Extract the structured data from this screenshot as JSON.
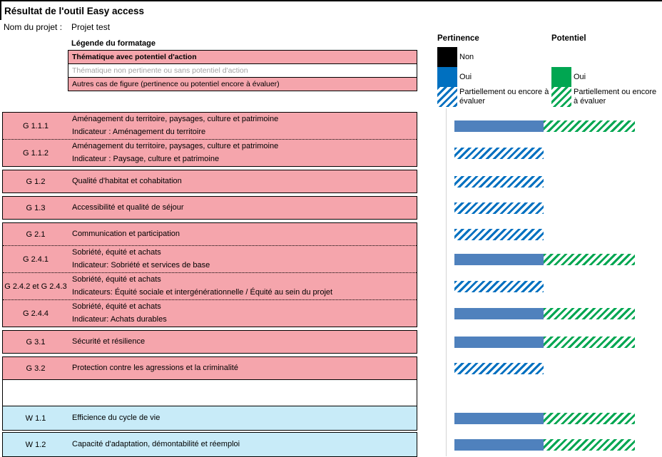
{
  "page": {
    "title": "Résultat de l'outil Easy access",
    "project_label": "Nom du projet :",
    "project_name": "Projet test"
  },
  "colors": {
    "pink_row": "#F5A5AC",
    "light_blue_row": "#C8EBF8",
    "solid_bar_blue": "#4F81BD",
    "legend_blue": "#0070C0",
    "legend_green": "#00A651",
    "legend_black": "#000000",
    "gray_text": "#A3A3A3"
  },
  "format_legend": {
    "header": "Légende du formatage",
    "rows": [
      {
        "text": "Thématique avec potentiel d'action",
        "style": "pink-bold"
      },
      {
        "text": "Thématique non pertinente ou sans potentiel d'action",
        "style": "white-gray"
      },
      {
        "text": "Autres cas de figure (pertinence ou potentiel encore à évaluer)",
        "style": "pink"
      }
    ]
  },
  "bar_legend": {
    "pertinence": {
      "title": "Pertinence",
      "items": [
        {
          "swatch": "black",
          "label": "Non"
        },
        {
          "swatch": "blue",
          "label": "Oui"
        },
        {
          "swatch": "blue-hatch",
          "label": "Partiellement ou encore à évaluer"
        }
      ]
    },
    "potentiel": {
      "title": "Potentiel",
      "items": [
        {
          "swatch": "green",
          "label": "Oui"
        },
        {
          "swatch": "green-hatch",
          "label": "Partiellement ou encore à évaluer"
        }
      ]
    }
  },
  "sections": [
    {
      "type": "box",
      "theme": "pink",
      "rows": [
        {
          "id": "G 1.1.1",
          "title": "Aménagement du territoire, paysages, culture et patrimoine",
          "indicator": "Indicateur : Aménagement du territoire",
          "pertinence": "oui",
          "potentiel": "partiel"
        },
        {
          "id": "G 1.1.2",
          "title": "Aménagement du territoire, paysages, culture et patrimoine",
          "indicator": "Indicateur : Paysage, culture et patrimoine",
          "pertinence": "partiel",
          "potentiel": null
        }
      ]
    },
    {
      "type": "box",
      "theme": "pink",
      "rows": [
        {
          "id": "G 1.2",
          "title": "Qualité d'habitat et cohabitation",
          "pertinence": "partiel",
          "potentiel": null
        }
      ]
    },
    {
      "type": "box",
      "theme": "pink",
      "rows": [
        {
          "id": "G 1.3",
          "title": "Accessibilité et qualité de séjour",
          "pertinence": "partiel",
          "potentiel": null
        }
      ]
    },
    {
      "type": "box",
      "theme": "pink",
      "rows": [
        {
          "id": "G 2.1",
          "title": "Communication et participation",
          "pertinence": "partiel",
          "potentiel": null
        },
        {
          "id": "G 2.4.1",
          "title": "Sobriété, équité et achats",
          "indicator": "Indicateur: Sobriété et services de base",
          "pertinence": "oui",
          "potentiel": "partiel"
        },
        {
          "id": "G 2.4.2 et G 2.4.3",
          "title": "Sobriété, équité et achats",
          "indicator": "Indicateurs: Équité sociale et intergénérationnelle / Équité au sein du projet",
          "pertinence": "partiel",
          "potentiel": null
        },
        {
          "id": "G 2.4.4",
          "title": "Sobriété, équité et achats",
          "indicator": "Indicateur: Achats durables",
          "pertinence": "oui",
          "potentiel": "partiel"
        }
      ]
    },
    {
      "type": "box",
      "theme": "pink",
      "rows": [
        {
          "id": "G 3.1",
          "title": "Sécurité et résilience",
          "pertinence": "oui",
          "potentiel": "partiel"
        }
      ]
    },
    {
      "type": "box",
      "theme": "pink",
      "rows": [
        {
          "id": "G 3.2",
          "title": "Protection contre les agressions et la criminalité",
          "pertinence": "partiel",
          "potentiel": null
        }
      ]
    },
    {
      "type": "spacer"
    },
    {
      "type": "box",
      "theme": "blue",
      "rows": [
        {
          "id": "W 1.1",
          "title": "Efficience du cycle de vie",
          "pertinence": "oui",
          "potentiel": "partiel"
        }
      ]
    },
    {
      "type": "box",
      "theme": "blue",
      "rows": [
        {
          "id": "W 1.2",
          "title": "Capacité d'adaptation, démontabilité et réemploi",
          "pertinence": "oui",
          "potentiel": "partiel"
        }
      ]
    }
  ]
}
